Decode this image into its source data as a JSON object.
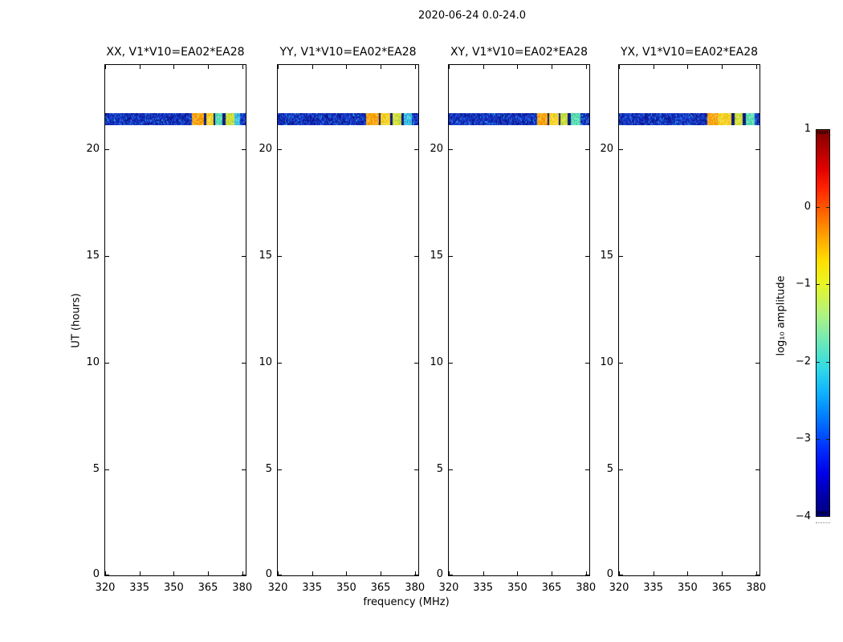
{
  "figure": {
    "title": "2020-06-24 0.0-24.0",
    "xlabel": "frequency (MHz)",
    "ylabel": "UT (hours)",
    "colorbar_label": "log₁₀ amplitude"
  },
  "chart_data": {
    "type": "heatmap",
    "title": "2020-06-24 0.0-24.0",
    "xlabel": "frequency (MHz)",
    "ylabel": "UT (hours)",
    "xlim": [
      320,
      381.5
    ],
    "ylim": [
      0,
      24
    ],
    "x_ticks": [
      320,
      335,
      350,
      365,
      380
    ],
    "y_ticks": [
      0,
      5,
      10,
      15,
      20
    ],
    "grid": false,
    "colorbar": {
      "label": "log₁₀ amplitude",
      "tick_labels": [
        "1",
        "0",
        "−1",
        "−2",
        "−3",
        "−4"
      ],
      "tick_values": [
        1,
        0,
        -1,
        -2,
        -3,
        -4
      ],
      "vmin": -4,
      "vmax": 1,
      "colormap": "jet",
      "position": "right"
    },
    "band_ut_range": [
      21.1,
      21.65
    ],
    "palette": {
      "blue": "#1433c2",
      "orange": "#f79e05",
      "yellow": "#fed32a",
      "yellowgreen": "#d8e23a",
      "greencyan": "#5fe0b2",
      "cyan": "#3ec2e4",
      "gap": "#0a1472"
    },
    "panels": [
      {
        "title": "XX, V1*V10=EA02*EA28",
        "segments": [
          {
            "f0": 320.0,
            "f1": 357.8,
            "c": "blue",
            "amp": -3.2
          },
          {
            "f0": 357.8,
            "f1": 363.1,
            "c": "orange",
            "amp": -0.4
          },
          {
            "f0": 363.1,
            "f1": 364.0,
            "c": "gap",
            "amp": -3.8
          },
          {
            "f0": 364.0,
            "f1": 367.2,
            "c": "yellow",
            "amp": -0.8
          },
          {
            "f0": 367.2,
            "f1": 368.1,
            "c": "gap",
            "amp": -3.8
          },
          {
            "f0": 368.1,
            "f1": 371.2,
            "c": "greencyan",
            "amp": -1.9
          },
          {
            "f0": 371.2,
            "f1": 372.5,
            "c": "gap",
            "amp": -3.8
          },
          {
            "f0": 372.5,
            "f1": 376.3,
            "c": "yellowgreen",
            "amp": -1.2
          },
          {
            "f0": 376.3,
            "f1": 378.7,
            "c": "cyan",
            "amp": -2.4
          },
          {
            "f0": 378.7,
            "f1": 381.5,
            "c": "blue",
            "amp": -3.2
          }
        ]
      },
      {
        "title": "YY, V1*V10=EA02*EA28",
        "segments": [
          {
            "f0": 320.0,
            "f1": 358.4,
            "c": "blue",
            "amp": -3.2
          },
          {
            "f0": 358.4,
            "f1": 364.0,
            "c": "orange",
            "amp": -0.4
          },
          {
            "f0": 364.0,
            "f1": 364.8,
            "c": "gap",
            "amp": -3.8
          },
          {
            "f0": 364.8,
            "f1": 369.2,
            "c": "yellow",
            "amp": -0.8
          },
          {
            "f0": 369.2,
            "f1": 370.1,
            "c": "gap",
            "amp": -3.8
          },
          {
            "f0": 370.1,
            "f1": 374.0,
            "c": "yellowgreen",
            "amp": -1.2
          },
          {
            "f0": 374.0,
            "f1": 375.0,
            "c": "gap",
            "amp": -3.8
          },
          {
            "f0": 375.0,
            "f1": 378.5,
            "c": "cyan",
            "amp": -2.3
          },
          {
            "f0": 378.5,
            "f1": 381.5,
            "c": "blue",
            "amp": -3.2
          }
        ]
      },
      {
        "title": "XY, V1*V10=EA02*EA28",
        "segments": [
          {
            "f0": 320.0,
            "f1": 358.4,
            "c": "blue",
            "amp": -3.2
          },
          {
            "f0": 358.4,
            "f1": 362.9,
            "c": "orange",
            "amp": -0.4
          },
          {
            "f0": 362.9,
            "f1": 363.8,
            "c": "gap",
            "amp": -3.8
          },
          {
            "f0": 363.8,
            "f1": 367.8,
            "c": "yellow",
            "amp": -0.8
          },
          {
            "f0": 367.8,
            "f1": 368.7,
            "c": "gap",
            "amp": -3.8
          },
          {
            "f0": 368.7,
            "f1": 371.7,
            "c": "yellowgreen",
            "amp": -1.2
          },
          {
            "f0": 371.7,
            "f1": 373.1,
            "c": "gap",
            "amp": -3.8
          },
          {
            "f0": 373.1,
            "f1": 377.6,
            "c": "greencyan",
            "amp": -1.9
          },
          {
            "f0": 377.6,
            "f1": 381.5,
            "c": "blue",
            "amp": -3.2
          }
        ]
      },
      {
        "title": "YX, V1*V10=EA02*EA28",
        "segments": [
          {
            "f0": 320.0,
            "f1": 358.4,
            "c": "blue",
            "amp": -3.2
          },
          {
            "f0": 358.4,
            "f1": 363.1,
            "c": "orange",
            "amp": -0.4
          },
          {
            "f0": 363.1,
            "f1": 369.1,
            "c": "yellow",
            "amp": -0.8
          },
          {
            "f0": 369.1,
            "f1": 370.3,
            "c": "gap",
            "amp": -3.8
          },
          {
            "f0": 370.3,
            "f1": 374.0,
            "c": "yellowgreen",
            "amp": -1.2
          },
          {
            "f0": 374.0,
            "f1": 375.2,
            "c": "gap",
            "amp": -3.8
          },
          {
            "f0": 375.2,
            "f1": 379.2,
            "c": "greencyan",
            "amp": -1.9
          },
          {
            "f0": 379.2,
            "f1": 381.5,
            "c": "blue",
            "amp": -3.2
          }
        ]
      }
    ]
  }
}
